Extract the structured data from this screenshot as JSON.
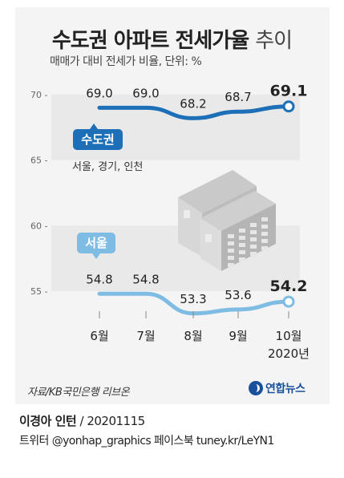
{
  "title": {
    "bold": "수도권 아파트 전세가율",
    "light": "추이"
  },
  "subtitle": "매매가 대비 전세가 비율, 단위: %",
  "chart_data": {
    "type": "line",
    "categories": [
      "6월",
      "7월",
      "8월",
      "9월",
      "10월"
    ],
    "year_label": "2020년",
    "ylim": [
      54,
      71
    ],
    "yticks": [
      "70",
      "65",
      "60",
      "55"
    ],
    "series": [
      {
        "name": "수도권",
        "note": "서울, 경기, 인천",
        "values": [
          69.0,
          69.0,
          68.2,
          68.7,
          69.1
        ],
        "labels": [
          "69.0",
          "69.0",
          "68.2",
          "68.7",
          "69.1"
        ],
        "color": "#1d6fb8"
      },
      {
        "name": "서울",
        "values": [
          54.8,
          54.8,
          53.3,
          53.6,
          54.2
        ],
        "labels": [
          "54.8",
          "54.8",
          "53.3",
          "53.6",
          "54.2"
        ],
        "color": "#7fbce3"
      }
    ],
    "grid": "horizontal bands"
  },
  "source": "자료/KB국민은행 리브온",
  "logo_text": "연합뉴스",
  "credit": {
    "name": "이경아 인턴",
    "date": " / 20201115"
  },
  "social": "트위터 @yonhap_graphics  페이스북 tuney.kr/LeYN1"
}
